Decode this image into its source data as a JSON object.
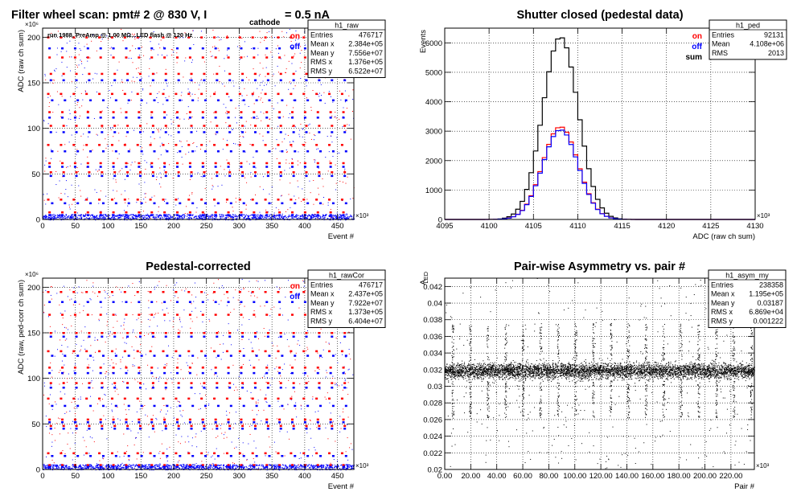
{
  "chart_data": [
    {
      "id": "raw",
      "type": "scatter",
      "title": "Filter wheel scan: pmt#   2 @   830 V, I",
      "title_sub": "cathode",
      "title_tail": "= 0.5 nA",
      "subtitle": "run 1988, PreAmp @ 1.00 MΩ...LED flash @  120 Hz",
      "xlabel": "Event #",
      "ylabel": "ADC (raw ch sum)",
      "x_exponent": "×10³",
      "y_exponent": "×10⁶",
      "xlim": [
        0,
        475
      ],
      "ylim": [
        0,
        210
      ],
      "x_ticks": [
        0,
        50,
        100,
        150,
        200,
        250,
        300,
        350,
        400,
        450
      ],
      "y_ticks": [
        0,
        50,
        100,
        150,
        200
      ],
      "legend": [
        {
          "label": "on",
          "color": "#ff0000"
        },
        {
          "label": "off",
          "color": "#0000ff"
        }
      ],
      "stats": {
        "name": "h1_raw",
        "rows": [
          [
            "Entries",
            "476717"
          ],
          [
            "Mean x",
            "2.384e+05"
          ],
          [
            "Mean y",
            "7.556e+07"
          ],
          [
            "RMS x",
            "1.376e+05"
          ],
          [
            "RMS y",
            "6.522e+07"
          ]
        ]
      },
      "levels": {
        "on": [
          200,
          178,
          160,
          138,
          118,
          103,
          82,
          62,
          52,
          22,
          8
        ],
        "off": [
          188,
          153,
          131,
          112,
          96,
          75,
          58,
          48,
          18,
          5
        ]
      }
    },
    {
      "id": "ped",
      "type": "line",
      "title": "Shutter closed (pedestal data)",
      "xlabel": "ADC (raw ch sum)",
      "ylabel": "Events",
      "x_exponent": "×10³",
      "xlim": [
        4095,
        4130
      ],
      "ylim": [
        0,
        6500
      ],
      "x_ticks": [
        4095,
        4100,
        4105,
        4110,
        4115,
        4120,
        4125,
        4130
      ],
      "y_ticks": [
        0,
        1000,
        2000,
        3000,
        4000,
        5000,
        6000
      ],
      "legend": [
        {
          "label": "on",
          "color": "#ff0000"
        },
        {
          "label": "off",
          "color": "#0000ff"
        },
        {
          "label": "sum",
          "color": "#000000"
        }
      ],
      "stats": {
        "name": "h1_ped",
        "rows": [
          [
            "Entries",
            "92131"
          ],
          [
            "Mean",
            "4.108e+06"
          ],
          [
            "RMS",
            "2013"
          ]
        ]
      },
      "series": [
        {
          "name": "sum",
          "color": "#000000",
          "mean": 4107.8,
          "sigma": 2.0,
          "peak": 6200
        },
        {
          "name": "on",
          "color": "#ff0000",
          "mean": 4107.8,
          "sigma": 2.0,
          "peak": 3150
        },
        {
          "name": "off",
          "color": "#0000ff",
          "mean": 4107.8,
          "sigma": 2.0,
          "peak": 3050
        }
      ]
    },
    {
      "id": "rawcor",
      "type": "scatter",
      "title": "Pedestal-corrected",
      "xlabel": "Event #",
      "ylabel": "ADC (raw, ped-corr ch sum)",
      "x_exponent": "×10³",
      "y_exponent": "×10⁶",
      "xlim": [
        0,
        475
      ],
      "ylim": [
        0,
        210
      ],
      "x_ticks": [
        0,
        50,
        100,
        150,
        200,
        250,
        300,
        350,
        400,
        450
      ],
      "y_ticks": [
        0,
        50,
        100,
        150,
        200
      ],
      "legend": [
        {
          "label": "on",
          "color": "#ff0000"
        },
        {
          "label": "off",
          "color": "#0000ff"
        }
      ],
      "stats": {
        "name": "h1_rawCor",
        "rows": [
          [
            "Entries",
            "476717"
          ],
          [
            "Mean x",
            "2.437e+05"
          ],
          [
            "Mean y",
            "7.922e+07"
          ],
          [
            "RMS x",
            "1.373e+05"
          ],
          [
            "RMS y",
            "6.404e+07"
          ]
        ]
      },
      "levels": {
        "on": [
          195,
          170,
          150,
          130,
          112,
          95,
          78,
          55,
          48,
          18,
          5
        ],
        "off": [
          184,
          146,
          125,
          106,
          90,
          70,
          52,
          45,
          15,
          3
        ]
      }
    },
    {
      "id": "asym",
      "type": "scatter",
      "title": "Pair-wise Asymmetry vs. pair #",
      "xlabel": "Pair #",
      "ylabel": "A",
      "ylabel_sub": "LED",
      "x_exponent": "×10³",
      "xlim": [
        0,
        238
      ],
      "ylim": [
        0.02,
        0.043
      ],
      "x_ticks": [
        0,
        20,
        40,
        60,
        80,
        100,
        120,
        140,
        160,
        180,
        200,
        220
      ],
      "y_ticks": [
        0.02,
        0.022,
        0.024,
        0.026,
        0.028,
        0.03,
        0.032,
        0.034,
        0.036,
        0.038,
        0.04,
        0.042
      ],
      "stats": {
        "name": "h1_asym_my",
        "rows": [
          [
            "Entries",
            "238358"
          ],
          [
            "Mean x",
            "1.195e+05"
          ],
          [
            "Mean y",
            "0.03187"
          ],
          [
            "RMS x",
            "6.869e+04"
          ],
          [
            "RMS y",
            "0.001222"
          ]
        ]
      },
      "band": {
        "center": 0.0319,
        "halfwidth": 0.0012
      },
      "spike_period": 13.5
    }
  ]
}
